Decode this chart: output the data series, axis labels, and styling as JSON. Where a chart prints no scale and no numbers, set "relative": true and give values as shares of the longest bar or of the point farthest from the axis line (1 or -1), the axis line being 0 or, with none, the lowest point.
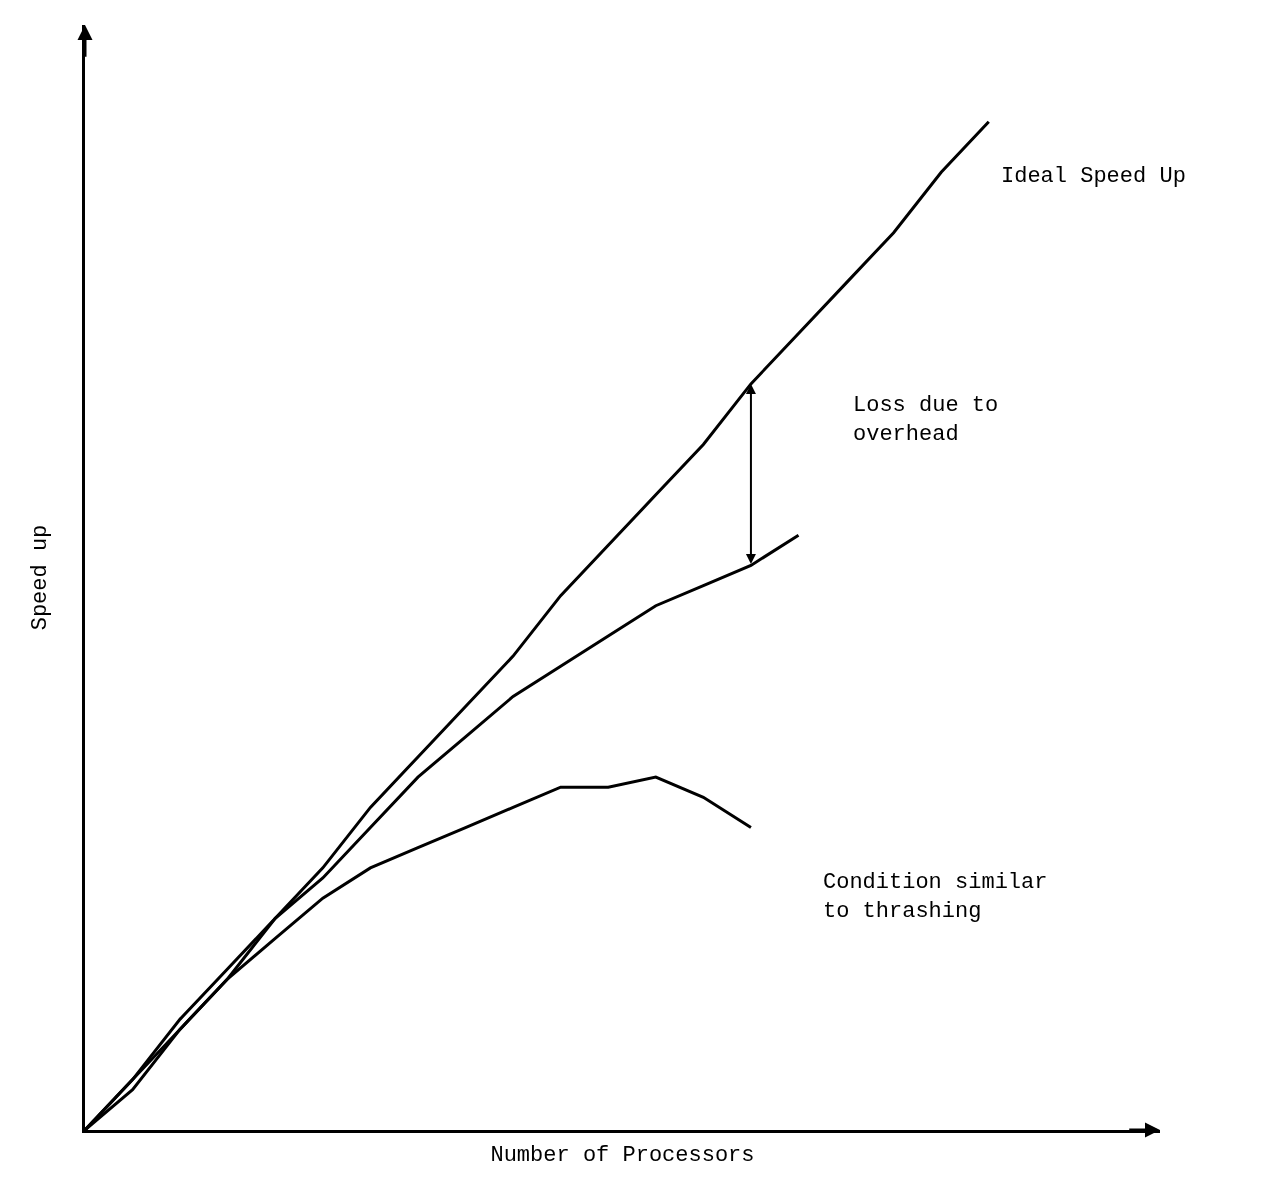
{
  "chart_data": {
    "type": "line",
    "relative": true,
    "xlabel": "Number of Processors",
    "ylabel": "Speed up",
    "categories": [
      null,
      null,
      null,
      null,
      null,
      null,
      null,
      null,
      null,
      null,
      null,
      null,
      null,
      null,
      null,
      null,
      null,
      null,
      null,
      null
    ],
    "series": [
      {
        "name": "Ideal Speed Up",
        "color": "#000000",
        "values": [
          0,
          0.05,
          0.11,
          0.16,
          0.21,
          0.26,
          0.32,
          0.37,
          0.42,
          0.47,
          0.53,
          0.58,
          0.63,
          0.68,
          0.74,
          0.79,
          0.84,
          0.89,
          0.95,
          1
        ]
      },
      {
        "color": "#000000",
        "values": [
          0,
          0.05,
          0.1,
          0.15,
          0.21,
          0.25,
          0.3,
          0.35,
          0.39,
          0.43,
          0.46,
          0.49,
          0.52,
          0.54,
          0.56,
          0.59,
          null,
          null,
          null,
          null
        ]
      },
      {
        "name": "Condition similar to thrashing",
        "color": "#000000",
        "values": [
          0,
          0.04,
          0.1,
          0.15,
          0.19,
          0.23,
          0.26,
          0.28,
          0.3,
          0.32,
          0.34,
          0.34,
          0.35,
          0.33,
          0.3,
          null,
          null,
          null,
          null,
          null
        ]
      }
    ],
    "annotations": [
      "Loss due to overhead"
    ],
    "legend": false,
    "marker": "none",
    "line_style": "solid"
  }
}
